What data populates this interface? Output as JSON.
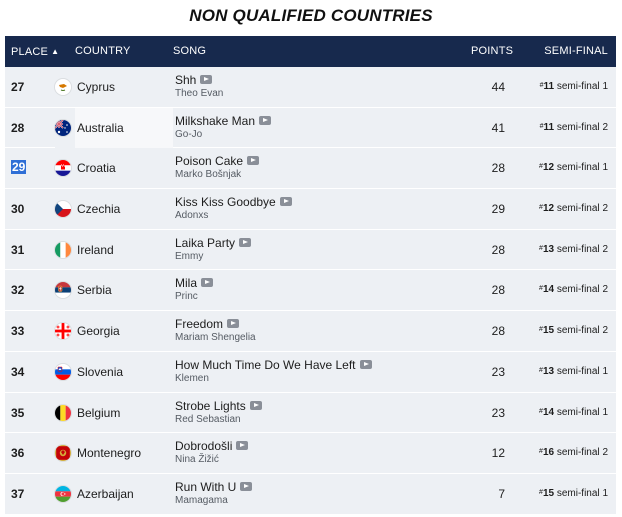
{
  "title": "NON QUALIFIED COUNTRIES",
  "header": {
    "place": "PLACE",
    "country": "COUNTRY",
    "song": "SONG",
    "points": "POINTS",
    "semi": "SEMI-FINAL",
    "sort_indicator": "▲"
  },
  "semi_label": "semi-final",
  "rows": [
    {
      "place": "27",
      "country": "Cyprus",
      "flag": "cyprus-flag-icon",
      "song": "Shh",
      "artist": "Theo Evan",
      "points": "44",
      "semi_pos": "11",
      "semi": "1"
    },
    {
      "place": "28",
      "country": "Australia",
      "flag": "australia-flag-icon",
      "song": "Milkshake Man",
      "artist": "Go-Jo",
      "points": "41",
      "semi_pos": "11",
      "semi": "2"
    },
    {
      "place": "29",
      "country": "Croatia",
      "flag": "croatia-flag-icon",
      "song": "Poison Cake",
      "artist": "Marko Bošnjak",
      "points": "28",
      "semi_pos": "12",
      "semi": "1"
    },
    {
      "place": "30",
      "country": "Czechia",
      "flag": "czechia-flag-icon",
      "song": "Kiss Kiss Goodbye",
      "artist": "Adonxs",
      "points": "29",
      "semi_pos": "12",
      "semi": "2"
    },
    {
      "place": "31",
      "country": "Ireland",
      "flag": "ireland-flag-icon",
      "song": "Laika Party",
      "artist": "Emmy",
      "points": "28",
      "semi_pos": "13",
      "semi": "2"
    },
    {
      "place": "32",
      "country": "Serbia",
      "flag": "serbia-flag-icon",
      "song": "Mila",
      "artist": "Princ",
      "points": "28",
      "semi_pos": "14",
      "semi": "2"
    },
    {
      "place": "33",
      "country": "Georgia",
      "flag": "georgia-flag-icon",
      "song": "Freedom",
      "artist": "Mariam Shengelia",
      "points": "28",
      "semi_pos": "15",
      "semi": "2"
    },
    {
      "place": "34",
      "country": "Slovenia",
      "flag": "slovenia-flag-icon",
      "song": "How Much Time Do We Have Left",
      "artist": "Klemen",
      "points": "23",
      "semi_pos": "13",
      "semi": "1"
    },
    {
      "place": "35",
      "country": "Belgium",
      "flag": "belgium-flag-icon",
      "song": "Strobe Lights",
      "artist": "Red Sebastian",
      "points": "23",
      "semi_pos": "14",
      "semi": "1"
    },
    {
      "place": "36",
      "country": "Montenegro",
      "flag": "montenegro-flag-icon",
      "song": "Dobrodošli",
      "artist": "Nina Žižić",
      "points": "12",
      "semi_pos": "16",
      "semi": "2"
    },
    {
      "place": "37",
      "country": "Azerbaijan",
      "flag": "azerbaijan-flag-icon",
      "song": "Run With U",
      "artist": "Mamagama",
      "points": "7",
      "semi_pos": "15",
      "semi": "1"
    }
  ]
}
